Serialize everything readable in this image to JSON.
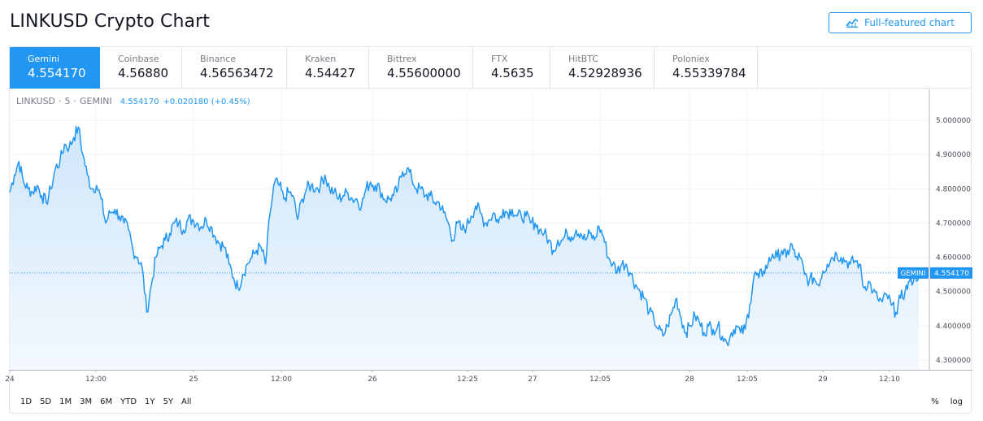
{
  "page": {
    "title": "LINKUSD Crypto Chart",
    "full_chart_label": "Full-featured chart",
    "full_chart_icon": "chart-line-icon"
  },
  "exchanges": [
    {
      "name": "Gemini",
      "price": "4.554170",
      "active": true
    },
    {
      "name": "Coinbase",
      "price": "4.56880"
    },
    {
      "name": "Binance",
      "price": "4.56563472"
    },
    {
      "name": "Kraken",
      "price": "4.54427"
    },
    {
      "name": "Bittrex",
      "price": "4.55600000"
    },
    {
      "name": "FTX",
      "price": "4.5635"
    },
    {
      "name": "HitBTC",
      "price": "4.52928936"
    },
    {
      "name": "Poloniex",
      "price": "4.55339784"
    }
  ],
  "legend": {
    "symbol": "LINKUSD",
    "interval": "5",
    "exchange": "GEMINI",
    "separator": "·",
    "price": "4.554170",
    "change": "+0.020180 (+0.45%)"
  },
  "ranges": [
    "1D",
    "5D",
    "1M",
    "3M",
    "6M",
    "YTD",
    "1Y",
    "5Y",
    "All"
  ],
  "scale_options": [
    "%",
    "log"
  ],
  "colors": {
    "accent": "#2196f3",
    "line": "#2196f3",
    "area_top": "#cfe6fb",
    "area_bottom": "#f3f9fe",
    "grid": "#f0f3fa"
  },
  "chart_data": {
    "type": "area",
    "title": "LINKUSD · 5 · GEMINI",
    "ylim": [
      4.27,
      5.05
    ],
    "y_ticks": [
      "5.000000",
      "4.900000",
      "4.800000",
      "4.700000",
      "4.600000",
      "4.500000",
      "4.400000",
      "4.300000"
    ],
    "x_ticks": [
      "24",
      "12:00",
      "25",
      "12:00",
      "26",
      "12:25",
      "27",
      "12:05",
      "28",
      "12:05",
      "29",
      "12:10"
    ],
    "current_price": {
      "label": "GEMINI",
      "value": "4.554170",
      "level": 4.55417
    },
    "grid": true,
    "series": [
      {
        "values": [
          4.79,
          4.84,
          4.88,
          4.82,
          4.8,
          4.79,
          4.81,
          4.78,
          4.76,
          4.8,
          4.86,
          4.88,
          4.93,
          4.92,
          4.95,
          4.98,
          4.9,
          4.84,
          4.8,
          4.81,
          4.77,
          4.7,
          4.73,
          4.74,
          4.72,
          4.7,
          4.68,
          4.62,
          4.6,
          4.57,
          4.44,
          4.52,
          4.6,
          4.63,
          4.65,
          4.67,
          4.7,
          4.7,
          4.68,
          4.71,
          4.71,
          4.7,
          4.69,
          4.71,
          4.69,
          4.66,
          4.64,
          4.63,
          4.58,
          4.54,
          4.51,
          4.55,
          4.58,
          4.6,
          4.62,
          4.63,
          4.58,
          4.73,
          4.82,
          4.81,
          4.77,
          4.79,
          4.78,
          4.71,
          4.77,
          4.8,
          4.81,
          4.8,
          4.81,
          4.84,
          4.8,
          4.79,
          4.77,
          4.78,
          4.79,
          4.77,
          4.77,
          4.75,
          4.8,
          4.82,
          4.81,
          4.8,
          4.77,
          4.77,
          4.78,
          4.8,
          4.85,
          4.86,
          4.83,
          4.8,
          4.8,
          4.78,
          4.78,
          4.76,
          4.76,
          4.73,
          4.7,
          4.65,
          4.7,
          4.68,
          4.69,
          4.72,
          4.75,
          4.73,
          4.7,
          4.71,
          4.73,
          4.7,
          4.74,
          4.73,
          4.74,
          4.72,
          4.72,
          4.72,
          4.7,
          4.7,
          4.68,
          4.67,
          4.65,
          4.62,
          4.65,
          4.65,
          4.67,
          4.66,
          4.68,
          4.67,
          4.65,
          4.67,
          4.65,
          4.69,
          4.66,
          4.6,
          4.58,
          4.56,
          4.58,
          4.58,
          4.55,
          4.52,
          4.5,
          4.48,
          4.44,
          4.42,
          4.39,
          4.37,
          4.4,
          4.44,
          4.48,
          4.42,
          4.38,
          4.4,
          4.43,
          4.41,
          4.38,
          4.4,
          4.39,
          4.4,
          4.37,
          4.35,
          4.38,
          4.4,
          4.38,
          4.39,
          4.46,
          4.55,
          4.54,
          4.56,
          4.58,
          4.61,
          4.6,
          4.62,
          4.6,
          4.64,
          4.6,
          4.6,
          4.55,
          4.53,
          4.54,
          4.52,
          4.56,
          4.58,
          4.6,
          4.61,
          4.6,
          4.59,
          4.58,
          4.59,
          4.58,
          4.51,
          4.53,
          4.5,
          4.48,
          4.47,
          4.49,
          4.46,
          4.44,
          4.48,
          4.5,
          4.53,
          4.54,
          4.55
        ]
      }
    ]
  }
}
